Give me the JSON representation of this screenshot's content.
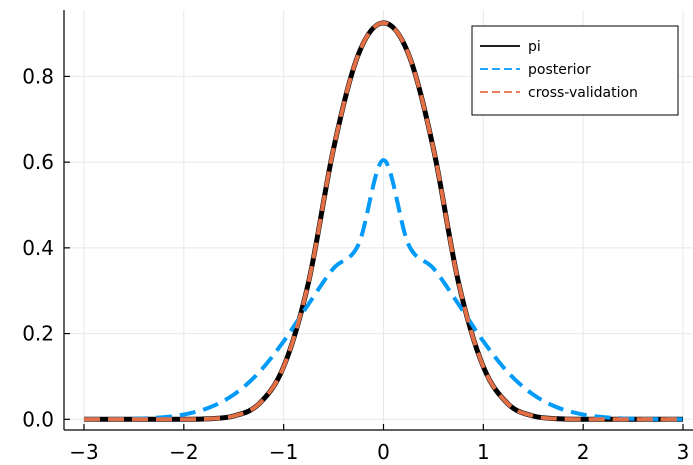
{
  "chart_data": {
    "type": "line",
    "title": "",
    "xlabel": "",
    "ylabel": "",
    "xlim": [
      -3.2,
      3.1
    ],
    "ylim": [
      -0.025,
      0.955
    ],
    "grid": true,
    "legend_position": "top-right",
    "x_ticks": [
      {
        "value": -3,
        "label": "−3"
      },
      {
        "value": -2,
        "label": "−2"
      },
      {
        "value": -1,
        "label": "−1"
      },
      {
        "value": 0,
        "label": "0"
      },
      {
        "value": 1,
        "label": "1"
      },
      {
        "value": 2,
        "label": "2"
      },
      {
        "value": 3,
        "label": "3"
      }
    ],
    "y_ticks": [
      {
        "value": 0.0,
        "label": "0.0"
      },
      {
        "value": 0.2,
        "label": "0.2"
      },
      {
        "value": 0.4,
        "label": "0.4"
      },
      {
        "value": 0.6,
        "label": "0.6"
      },
      {
        "value": 0.8,
        "label": "0.8"
      }
    ],
    "x": [
      -3.0,
      -2.75,
      -2.5,
      -2.25,
      -2.0,
      -1.75,
      -1.5,
      -1.25,
      -1.0,
      -0.75,
      -0.5,
      -0.25,
      0.0,
      0.25,
      0.5,
      0.75,
      1.0,
      1.25,
      1.5,
      1.75,
      2.0,
      2.25,
      2.5,
      2.75,
      3.0
    ],
    "series": [
      {
        "name": "pi",
        "color": "#000000",
        "dash": "solid",
        "values": [
          0.0,
          0.0,
          0.0,
          0.0,
          0.0001,
          0.0013,
          0.0077,
          0.0354,
          0.1226,
          0.3206,
          0.6317,
          0.8523,
          0.925,
          0.8523,
          0.6317,
          0.3206,
          0.1226,
          0.0354,
          0.0077,
          0.0013,
          0.0001,
          0.0,
          0.0,
          0.0,
          0.0
        ]
      },
      {
        "name": "posterior",
        "color": "#009af9",
        "dash": "dashed",
        "values": [
          0.0001,
          0.0004,
          0.0013,
          0.0041,
          0.0111,
          0.0269,
          0.0575,
          0.1087,
          0.1819,
          0.2691,
          0.3523,
          0.4081,
          0.605,
          0.4081,
          0.3523,
          0.2691,
          0.1819,
          0.1087,
          0.0575,
          0.0269,
          0.0111,
          0.0041,
          0.0013,
          0.0004,
          0.0001
        ]
      },
      {
        "name": "cross-validation",
        "color": "#e26f46",
        "dash": "dashed",
        "values": [
          0.0,
          0.0,
          0.0,
          0.0,
          0.0001,
          0.0013,
          0.0077,
          0.0354,
          0.1226,
          0.3206,
          0.6317,
          0.8523,
          0.925,
          0.8523,
          0.6317,
          0.3206,
          0.1226,
          0.0354,
          0.0077,
          0.0013,
          0.0001,
          0.0,
          0.0,
          0.0,
          0.0
        ]
      }
    ]
  }
}
